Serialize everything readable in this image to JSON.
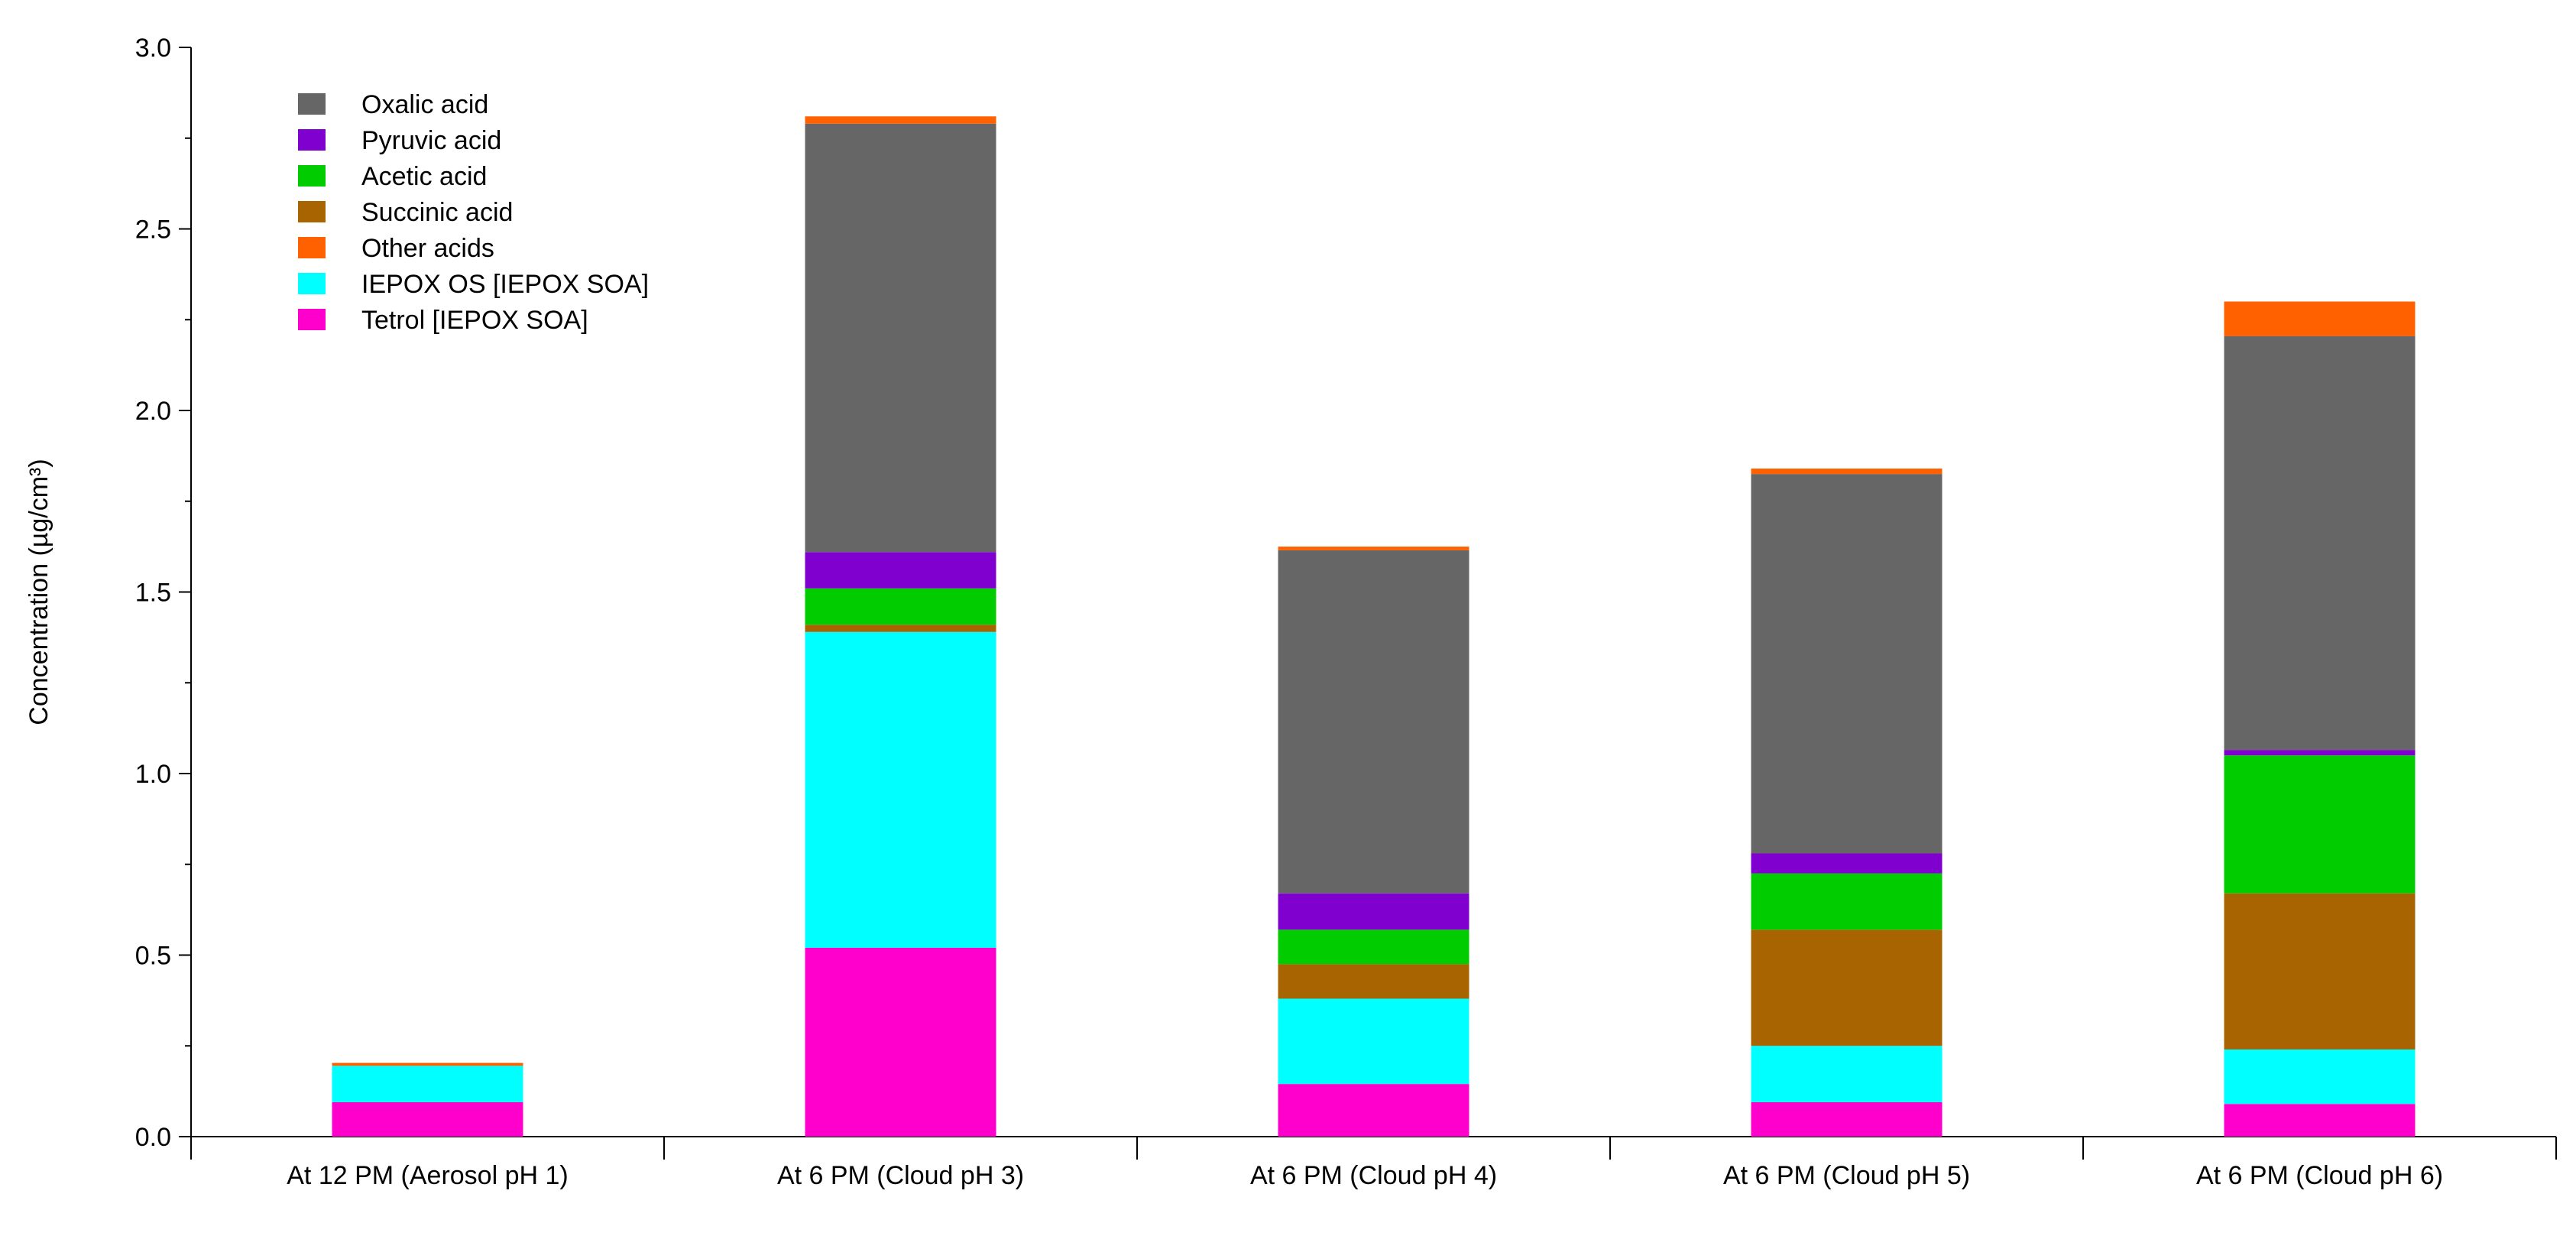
{
  "chart_data": {
    "type": "bar",
    "stacked": true,
    "categories": [
      "At 12 PM (Aerosol pH 1)",
      "At 6 PM (Cloud pH 3)",
      "At 6 PM (Cloud pH 4)",
      "At 6 PM (Cloud pH 5)",
      "At 6 PM (Cloud pH 6)"
    ],
    "ylabel": "Concentration (µg/cm³)",
    "ylim": [
      0,
      3.0
    ],
    "yticks": [
      "0.0",
      "0.5",
      "1.0",
      "1.5",
      "2.0",
      "2.5",
      "3.0"
    ],
    "grid": false,
    "legend_position": "top-left",
    "series": [
      {
        "name": "Tetrol [IEPOX SOA]",
        "color": "#ff00cc",
        "values": [
          0.095,
          0.52,
          0.145,
          0.095,
          0.09
        ]
      },
      {
        "name": "IEPOX OS [IEPOX SOA]",
        "color": "#00ffff",
        "values": [
          0.1,
          0.87,
          0.235,
          0.155,
          0.15
        ]
      },
      {
        "name": "Succinic acid",
        "color": "#a86400",
        "values": [
          0.0,
          0.02,
          0.095,
          0.32,
          0.43
        ]
      },
      {
        "name": "Acetic acid",
        "color": "#00cc00",
        "values": [
          0.0,
          0.1,
          0.095,
          0.155,
          0.38
        ]
      },
      {
        "name": "Pyruvic acid",
        "color": "#8000d0",
        "values": [
          0.0,
          0.1,
          0.1,
          0.055,
          0.015
        ]
      },
      {
        "name": "Oxalic acid",
        "color": "#666666",
        "values": [
          0.0,
          1.18,
          0.945,
          1.045,
          1.14
        ]
      },
      {
        "name": "Other acids",
        "color": "#ff6000",
        "values": [
          0.008,
          0.02,
          0.01,
          0.015,
          0.095
        ]
      }
    ],
    "legend_order": [
      "Oxalic acid",
      "Pyruvic acid",
      "Acetic acid",
      "Succinic acid",
      "Other acids",
      "IEPOX OS [IEPOX SOA]",
      "Tetrol [IEPOX SOA]"
    ]
  }
}
